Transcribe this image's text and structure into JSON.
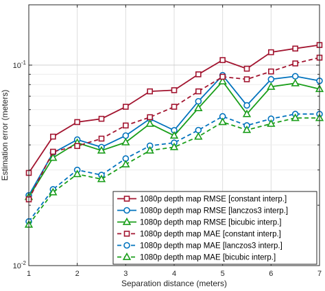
{
  "chart_data": {
    "type": "line",
    "xlabel": "Separation distance (meters)",
    "ylabel": "Estimation error (meters)",
    "xlim": [
      1,
      7
    ],
    "ylim": [
      0.01,
      0.2
    ],
    "yscale": "log",
    "grid": true,
    "legend_position": "bottom-right",
    "x": [
      1,
      1.5,
      2,
      2.5,
      3,
      3.5,
      4,
      4.5,
      5,
      5.5,
      6,
      6.5,
      7
    ],
    "x_ticks": [
      "1",
      "2",
      "3",
      "4",
      "5",
      "6",
      "7"
    ],
    "y_ticks": [
      {
        "value": 0.01,
        "base": "10",
        "exp": "-2"
      },
      {
        "value": 0.1,
        "base": "10",
        "exp": "-1"
      }
    ],
    "series": [
      {
        "name": "1080p depth map RMSE [constant interp.]",
        "color": "#a2142f",
        "marker": "square",
        "dashed": false,
        "values": [
          0.029,
          0.044,
          0.052,
          0.054,
          0.062,
          0.074,
          0.075,
          0.09,
          0.106,
          0.096,
          0.116,
          0.121,
          0.126
        ]
      },
      {
        "name": "1080p depth map RMSE [lanczos3 interp.]",
        "color": "#0072bd",
        "marker": "circle",
        "dashed": false,
        "values": [
          0.0224,
          0.0365,
          0.0425,
          0.039,
          0.0445,
          0.054,
          0.0473,
          0.066,
          0.089,
          0.063,
          0.085,
          0.088,
          0.0835
        ]
      },
      {
        "name": "1080p depth map RMSE [bicubic interp.]",
        "color": "#1a9e1a",
        "marker": "triangle",
        "dashed": false,
        "values": [
          0.022,
          0.0345,
          0.041,
          0.0375,
          0.0412,
          0.051,
          0.0445,
          0.061,
          0.083,
          0.057,
          0.078,
          0.0812,
          0.076
        ]
      },
      {
        "name": "1080p depth map MAE [constant interp.]",
        "color": "#a2142f",
        "marker": "square",
        "dashed": true,
        "values": [
          0.0214,
          0.037,
          0.0395,
          0.043,
          0.05,
          0.055,
          0.062,
          0.074,
          0.0875,
          0.085,
          0.093,
          0.102,
          0.109
        ]
      },
      {
        "name": "1080p depth map MAE [lanczos3 interp.]",
        "color": "#0072bd",
        "marker": "circle",
        "dashed": true,
        "values": [
          0.0166,
          0.024,
          0.03,
          0.0283,
          0.0342,
          0.0396,
          0.041,
          0.0474,
          0.0555,
          0.05,
          0.054,
          0.057,
          0.057
        ]
      },
      {
        "name": "1080p depth map MAE [bicubic interp.]",
        "color": "#1a9e1a",
        "marker": "triangle",
        "dashed": true,
        "values": [
          0.016,
          0.0232,
          0.0286,
          0.027,
          0.032,
          0.0375,
          0.039,
          0.044,
          0.052,
          0.0475,
          0.051,
          0.0545,
          0.0545
        ]
      }
    ]
  }
}
